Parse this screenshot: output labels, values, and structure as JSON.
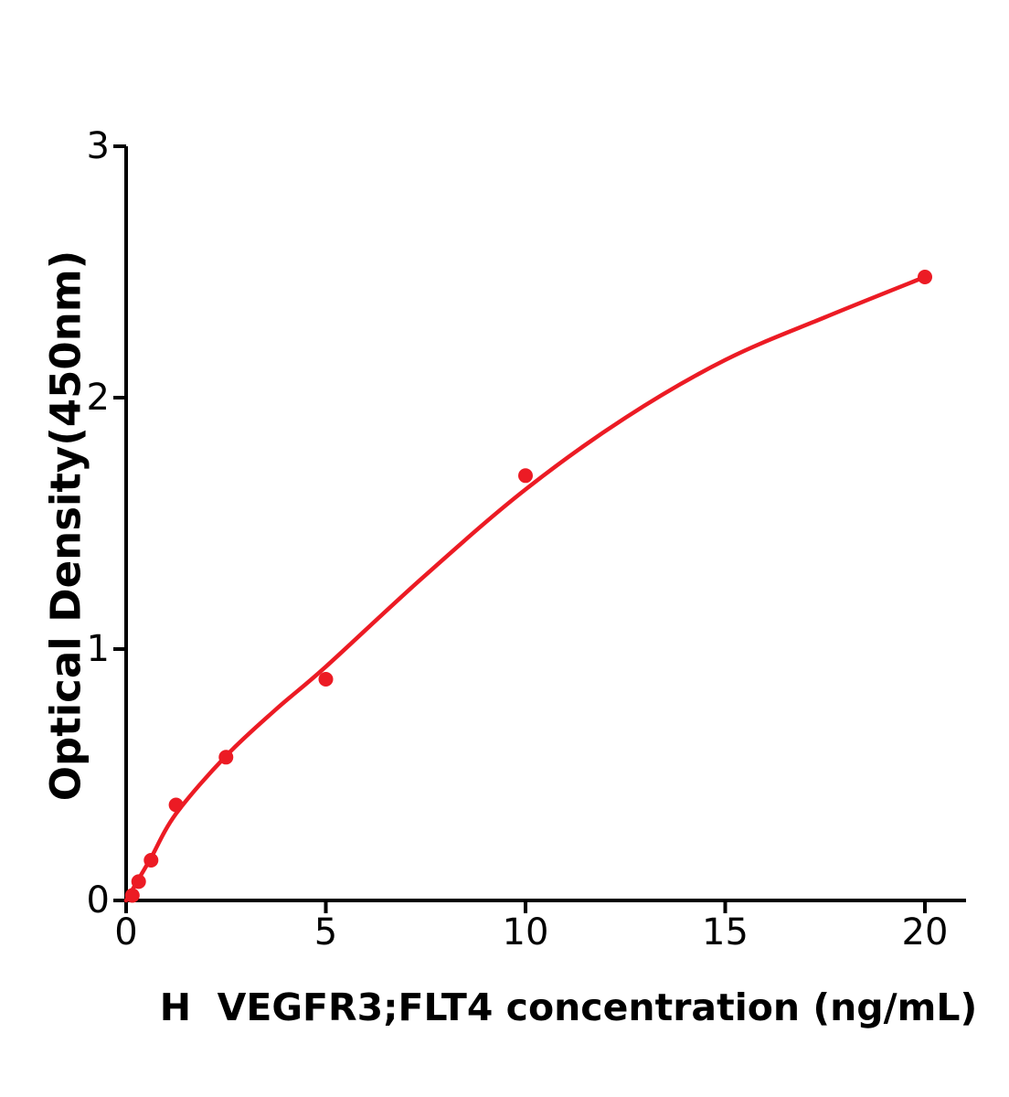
{
  "figure": {
    "background": "#ffffff"
  },
  "chart_data": {
    "type": "scatter",
    "xlabel": "H  VEGFR3;FLT4 concentration (ng/mL)",
    "ylabel": "Optical Density(450nm)",
    "xlim": [
      0,
      21
    ],
    "ylim": [
      0,
      3
    ],
    "xticks": [
      0,
      5,
      10,
      15,
      20
    ],
    "yticks": [
      0,
      1,
      2,
      3
    ],
    "grid": false,
    "legend_position": "none",
    "axis_color": "#000000",
    "series": [
      {
        "color": "#ec1b24",
        "marker": "circle",
        "points": [
          {
            "x": 0.156,
            "y": 0.02
          },
          {
            "x": 0.3125,
            "y": 0.075
          },
          {
            "x": 0.625,
            "y": 0.16
          },
          {
            "x": 1.25,
            "y": 0.38
          },
          {
            "x": 2.5,
            "y": 0.57
          },
          {
            "x": 5,
            "y": 0.88
          },
          {
            "x": 10,
            "y": 1.69
          },
          {
            "x": 20,
            "y": 2.48
          }
        ],
        "fit_curve": [
          {
            "x": 0,
            "y": 0
          },
          {
            "x": 0.3125,
            "y": 0.085
          },
          {
            "x": 0.625,
            "y": 0.17
          },
          {
            "x": 1.25,
            "y": 0.345
          },
          {
            "x": 2.5,
            "y": 0.575
          },
          {
            "x": 3.75,
            "y": 0.76
          },
          {
            "x": 5,
            "y": 0.93
          },
          {
            "x": 7.5,
            "y": 1.295
          },
          {
            "x": 10,
            "y": 1.635
          },
          {
            "x": 12.5,
            "y": 1.92
          },
          {
            "x": 15,
            "y": 2.15
          },
          {
            "x": 17.5,
            "y": 2.32
          },
          {
            "x": 20,
            "y": 2.48
          }
        ]
      }
    ]
  }
}
